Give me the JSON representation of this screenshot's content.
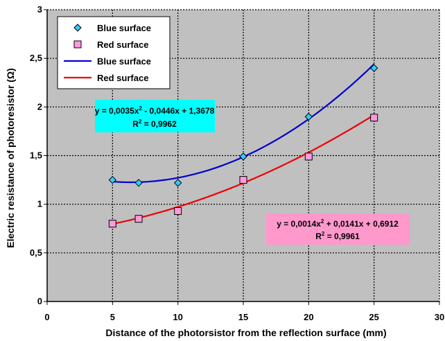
{
  "chart_data": {
    "type": "scatter",
    "xlabel": "Distance of the photorsistor from the reflection surface (mm)",
    "ylabel": "Electric resistance of photoresistor (Ω)",
    "xlim": [
      0,
      30
    ],
    "ylim": [
      0,
      3
    ],
    "x_ticks": [
      "0",
      "5",
      "10",
      "15",
      "20",
      "25",
      "30"
    ],
    "y_ticks": [
      "0",
      "0,5",
      "1",
      "1,5",
      "2",
      "2,5",
      "3"
    ],
    "grid": true,
    "legend_position": "top-left",
    "series": [
      {
        "name": "Blue surface",
        "kind": "markers",
        "marker": "diamond",
        "color": "#33ccff",
        "x": [
          5,
          7,
          10,
          15,
          20,
          25
        ],
        "y": [
          1.25,
          1.22,
          1.22,
          1.49,
          1.9,
          2.4
        ]
      },
      {
        "name": "Red surface",
        "kind": "markers",
        "marker": "square",
        "color": "#ff99dd",
        "x": [
          5,
          7,
          10,
          15,
          20,
          25
        ],
        "y": [
          0.8,
          0.85,
          0.93,
          1.25,
          1.49,
          1.89
        ]
      },
      {
        "name": "Blue surface",
        "kind": "trendline",
        "color": "#0000cc",
        "coefficients": [
          0.0035,
          -0.0446,
          1.3678
        ],
        "x_range": [
          5,
          25
        ]
      },
      {
        "name": "Red surface",
        "kind": "trendline",
        "color": "#ee0000",
        "coefficients": [
          0.0014,
          0.0141,
          0.6912
        ],
        "x_range": [
          5,
          25
        ]
      }
    ],
    "annotations": [
      {
        "id": "blue-equation",
        "bg_color": "#00ffff",
        "line1_before": "y = 0,0035x",
        "line1_exp": "2",
        "line1_after": " - 0,0446x + 1,3678",
        "line2_before": "R",
        "line2_exp": "2",
        "line2_after": " = 0,9962"
      },
      {
        "id": "red-equation",
        "bg_color": "#ff99cc",
        "line1_before": "y = 0,0014x",
        "line1_exp": "2",
        "line1_after": " + 0,0141x + 0,6912",
        "line2_before": "R",
        "line2_exp": "2",
        "line2_after": " = 0,9961"
      }
    ],
    "plot_bg_color": "#c0c0c0"
  }
}
